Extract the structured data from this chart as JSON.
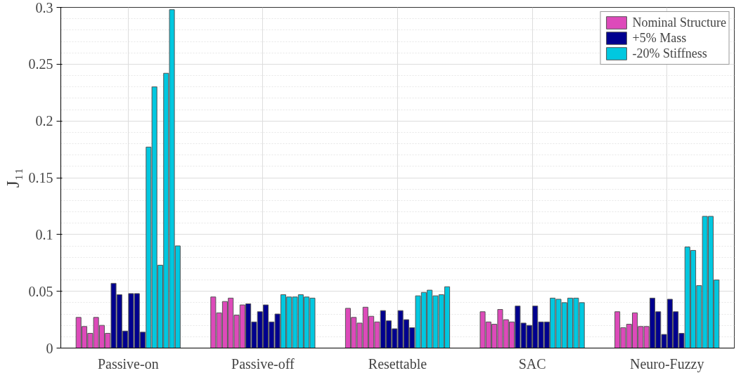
{
  "chart_data": {
    "type": "bar",
    "ylabel": "J₁₁",
    "categories": [
      "Passive-on",
      "Passive-off",
      "Resettable",
      "SAC",
      "Neuro-Fuzzy"
    ],
    "series": [
      {
        "name": "Nominal Structure",
        "color": "#dd4aba",
        "values": [
          0.027,
          0.045,
          0.035,
          0.032,
          0.032
        ]
      },
      {
        "color": "#dd4aba",
        "values": [
          0.019,
          0.031,
          0.027,
          0.023,
          0.018
        ]
      },
      {
        "color": "#dd4aba",
        "values": [
          0.013,
          0.041,
          0.022,
          0.021,
          0.021
        ]
      },
      {
        "color": "#dd4aba",
        "values": [
          0.027,
          0.044,
          0.036,
          0.034,
          0.031
        ]
      },
      {
        "color": "#dd4aba",
        "values": [
          0.02,
          0.029,
          0.028,
          0.025,
          0.019
        ]
      },
      {
        "color": "#dd4aba",
        "values": [
          0.013,
          0.038,
          0.023,
          0.023,
          0.019
        ]
      },
      {
        "name": "+5% Mass",
        "color": "#00008f",
        "values": [
          0.057,
          0.039,
          0.033,
          0.037,
          0.044
        ]
      },
      {
        "color": "#00008f",
        "values": [
          0.047,
          0.023,
          0.024,
          0.022,
          0.032
        ]
      },
      {
        "color": "#00008f",
        "values": [
          0.015,
          0.032,
          0.017,
          0.02,
          0.012
        ]
      },
      {
        "color": "#00008f",
        "values": [
          0.048,
          0.038,
          0.033,
          0.037,
          0.043
        ]
      },
      {
        "color": "#00008f",
        "values": [
          0.048,
          0.023,
          0.025,
          0.023,
          0.032
        ]
      },
      {
        "color": "#00008f",
        "values": [
          0.014,
          0.03,
          0.018,
          0.023,
          0.013
        ]
      },
      {
        "name": "-20% Stiffness",
        "color": "#00c8e0",
        "values": [
          0.177,
          0.047,
          0.046,
          0.044,
          0.089
        ]
      },
      {
        "color": "#00c8e0",
        "values": [
          0.23,
          0.045,
          0.049,
          0.043,
          0.086
        ]
      },
      {
        "color": "#00c8e0",
        "values": [
          0.073,
          0.045,
          0.051,
          0.04,
          0.055
        ]
      },
      {
        "color": "#00c8e0",
        "values": [
          0.242,
          0.047,
          0.046,
          0.044,
          0.116
        ]
      },
      {
        "color": "#00c8e0",
        "values": [
          0.298,
          0.045,
          0.047,
          0.044,
          0.116
        ]
      },
      {
        "color": "#00c8e0",
        "values": [
          0.09,
          0.044,
          0.054,
          0.04,
          0.06
        ]
      }
    ],
    "ylim": [
      0,
      0.3
    ],
    "yticks": [
      0,
      0.05,
      0.1,
      0.15,
      0.2,
      0.25,
      0.3
    ],
    "grid": true,
    "legend": "top right"
  }
}
